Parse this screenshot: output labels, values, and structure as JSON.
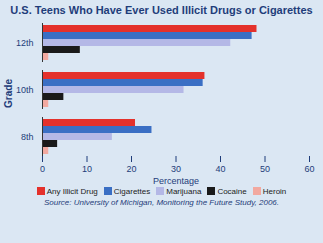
{
  "chart_data": {
    "type": "bar",
    "orientation": "horizontal",
    "title": "U.S. Teens Who Have Ever Used Illicit Drugs or Cigarettes",
    "x_label": "Percentage",
    "y_label": "Grade",
    "source": "Source: University of Michigan, Monitoring the Future Study, 2006.",
    "categories": [
      "12th",
      "10th",
      "8th"
    ],
    "series": [
      {
        "name": "Any Illicit Drug",
        "color": "#e4312b",
        "values": [
          48.2,
          36.5,
          20.9
        ]
      },
      {
        "name": "Cigarettes",
        "color": "#3a6fc4",
        "values": [
          47.1,
          36.1,
          24.6
        ]
      },
      {
        "name": "Marijuana",
        "color": "#b4b8e6",
        "values": [
          42.3,
          31.8,
          15.7
        ]
      },
      {
        "name": "Cocaine",
        "color": "#1a1a1a",
        "values": [
          8.5,
          4.8,
          3.4
        ]
      },
      {
        "name": "Heroin",
        "color": "#f2a9a0",
        "values": [
          1.4,
          1.4,
          1.4
        ]
      }
    ],
    "xlim": [
      0,
      60
    ],
    "xticks": [
      0,
      10,
      20,
      30,
      40,
      50,
      60
    ],
    "grid": false,
    "legend": "bottom"
  }
}
